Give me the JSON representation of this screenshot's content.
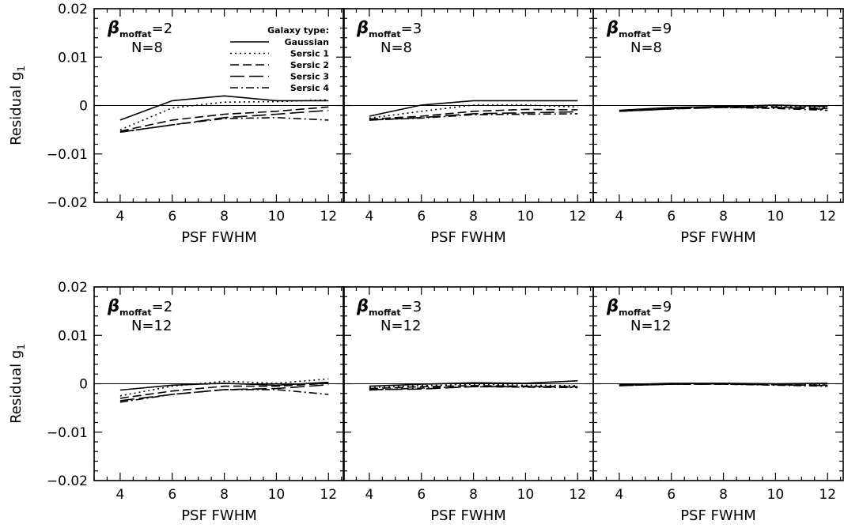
{
  "colors": {
    "ink": "#000000",
    "background": "#ffffff"
  },
  "legend": {
    "title": "Galaxy type:",
    "entries": [
      {
        "label": "Gaussian",
        "dash": "solid"
      },
      {
        "label": "Sersic 1",
        "dash": "dotted"
      },
      {
        "label": "Sersic 2",
        "dash": "short-dash"
      },
      {
        "label": "Sersic 3",
        "dash": "long-dash"
      },
      {
        "label": "Sersic 4",
        "dash": "dash-dot"
      }
    ]
  },
  "chart_data": [
    {
      "type": "line",
      "row": 0,
      "col": 0,
      "label_beta": "=2",
      "label_n": "N=8",
      "xlabel": "PSF FWHM",
      "ylabel": "Residual g",
      "xlim": [
        3,
        12.6
      ],
      "ylim": [
        -0.02,
        0.02
      ],
      "xticks": [
        4,
        6,
        8,
        10,
        12
      ],
      "yticks": [
        -0.02,
        -0.01,
        0,
        0.01,
        0.02
      ],
      "x": [
        4,
        6,
        8,
        10,
        12
      ],
      "series": [
        {
          "name": "Gaussian",
          "values": [
            -0.003,
            0.001,
            0.002,
            0.001,
            0.001
          ]
        },
        {
          "name": "Sersic 1",
          "values": [
            -0.005,
            -0.0005,
            0.0007,
            0.0008,
            0.0012
          ]
        },
        {
          "name": "Sersic 2",
          "values": [
            -0.0053,
            -0.003,
            -0.0018,
            -0.0012,
            -0.0003
          ]
        },
        {
          "name": "Sersic 3",
          "values": [
            -0.0055,
            -0.004,
            -0.0025,
            -0.0018,
            -0.001
          ]
        },
        {
          "name": "Sersic 4",
          "values": [
            -0.0055,
            -0.004,
            -0.0027,
            -0.0025,
            -0.003
          ]
        }
      ]
    },
    {
      "type": "line",
      "row": 0,
      "col": 1,
      "label_beta": "=3",
      "label_n": "N=8",
      "xlabel": "PSF FWHM",
      "ylabel": "",
      "xlim": [
        3,
        12.6
      ],
      "ylim": [
        -0.02,
        0.02
      ],
      "xticks": [
        4,
        6,
        8,
        10,
        12
      ],
      "yticks": [
        -0.02,
        -0.01,
        0,
        0.01,
        0.02
      ],
      "x": [
        4,
        6,
        8,
        10,
        12
      ],
      "series": [
        {
          "name": "Gaussian",
          "values": [
            -0.0022,
            0.0001,
            0.001,
            0.001,
            0.001
          ]
        },
        {
          "name": "Sersic 1",
          "values": [
            -0.0026,
            -0.0012,
            0.0001,
            0.0001,
            -0.0003
          ]
        },
        {
          "name": "Sersic 2",
          "values": [
            -0.0028,
            -0.0022,
            -0.0012,
            -0.0008,
            -0.0009
          ]
        },
        {
          "name": "Sersic 3",
          "values": [
            -0.003,
            -0.0025,
            -0.0017,
            -0.0015,
            -0.0013
          ]
        },
        {
          "name": "Sersic 4",
          "values": [
            -0.003,
            -0.0026,
            -0.0019,
            -0.0018,
            -0.0017
          ]
        }
      ]
    },
    {
      "type": "line",
      "row": 0,
      "col": 2,
      "label_beta": "=9",
      "label_n": "N=8",
      "xlabel": "PSF FWHM",
      "ylabel": "",
      "xlim": [
        3,
        12.6
      ],
      "ylim": [
        -0.02,
        0.02
      ],
      "xticks": [
        4,
        6,
        8,
        10,
        12
      ],
      "yticks": [
        -0.02,
        -0.01,
        0,
        0.01,
        0.02
      ],
      "x": [
        4,
        6,
        8,
        10,
        12
      ],
      "series": [
        {
          "name": "Gaussian",
          "values": [
            -0.001,
            -0.0004,
            -0.0002,
            0.0001,
            -0.0002
          ]
        },
        {
          "name": "Sersic 1",
          "values": [
            -0.0011,
            -0.0005,
            -0.0003,
            -0.0001,
            -0.0004
          ]
        },
        {
          "name": "Sersic 2",
          "values": [
            -0.0012,
            -0.0006,
            -0.0003,
            -0.0003,
            -0.0006
          ]
        },
        {
          "name": "Sersic 3",
          "values": [
            -0.0012,
            -0.0007,
            -0.0004,
            -0.0004,
            -0.0008
          ]
        },
        {
          "name": "Sersic 4",
          "values": [
            -0.0012,
            -0.0007,
            -0.0004,
            -0.0006,
            -0.001
          ]
        }
      ]
    },
    {
      "type": "line",
      "row": 1,
      "col": 0,
      "label_beta": "=2",
      "label_n": "N=12",
      "xlabel": "PSF FWHM",
      "ylabel": "Residual g",
      "xlim": [
        3,
        12.6
      ],
      "ylim": [
        -0.02,
        0.02
      ],
      "xticks": [
        4,
        6,
        8,
        10,
        12
      ],
      "yticks": [
        -0.02,
        -0.01,
        0,
        0.01,
        0.02
      ],
      "x": [
        4,
        6,
        8,
        10,
        12
      ],
      "series": [
        {
          "name": "Gaussian",
          "values": [
            -0.0013,
            -0.0003,
            0.0001,
            -0.0003,
            0.0003
          ]
        },
        {
          "name": "Sersic 1",
          "values": [
            -0.0025,
            -0.0005,
            0.0005,
            0.0001,
            0.001
          ]
        },
        {
          "name": "Sersic 2",
          "values": [
            -0.003,
            -0.0015,
            -0.0005,
            -0.0005,
            0.0001
          ]
        },
        {
          "name": "Sersic 3",
          "values": [
            -0.0035,
            -0.0022,
            -0.0012,
            -0.001,
            -0.0002
          ]
        },
        {
          "name": "Sersic 4",
          "values": [
            -0.0038,
            -0.0022,
            -0.0012,
            -0.0012,
            -0.0022
          ]
        }
      ]
    },
    {
      "type": "line",
      "row": 1,
      "col": 1,
      "label_beta": "=3",
      "label_n": "N=12",
      "xlabel": "PSF FWHM",
      "ylabel": "",
      "xlim": [
        3,
        12.6
      ],
      "ylim": [
        -0.02,
        0.02
      ],
      "xticks": [
        4,
        6,
        8,
        10,
        12
      ],
      "yticks": [
        -0.02,
        -0.01,
        0,
        0.01,
        0.02
      ],
      "x": [
        4,
        6,
        8,
        10,
        12
      ],
      "series": [
        {
          "name": "Gaussian",
          "values": [
            -0.0005,
            -0.0001,
            0.0002,
            0.0001,
            0.0006
          ]
        },
        {
          "name": "Sersic 1",
          "values": [
            -0.0008,
            -0.0004,
            -0.0001,
            -0.0003,
            -0.0004
          ]
        },
        {
          "name": "Sersic 2",
          "values": [
            -0.001,
            -0.0006,
            -0.0004,
            -0.0005,
            -0.0006
          ]
        },
        {
          "name": "Sersic 3",
          "values": [
            -0.0012,
            -0.0011,
            -0.0006,
            -0.0006,
            -0.0007
          ]
        },
        {
          "name": "Sersic 4",
          "values": [
            -0.0013,
            -0.0009,
            -0.0006,
            -0.0007,
            -0.0008
          ]
        }
      ]
    },
    {
      "type": "line",
      "row": 1,
      "col": 2,
      "label_beta": "=9",
      "label_n": "N=12",
      "xlabel": "PSF FWHM",
      "ylabel": "",
      "xlim": [
        3,
        12.6
      ],
      "ylim": [
        -0.02,
        0.02
      ],
      "xticks": [
        4,
        6,
        8,
        10,
        12
      ],
      "yticks": [
        -0.02,
        -0.01,
        0,
        0.01,
        0.02
      ],
      "x": [
        4,
        6,
        8,
        10,
        12
      ],
      "series": [
        {
          "name": "Gaussian",
          "values": [
            -0.0002,
            0.0001,
            0.0001,
            0.0,
            0.0001
          ]
        },
        {
          "name": "Sersic 1",
          "values": [
            -0.0003,
            0.0,
            0.0001,
            -0.0001,
            -0.0002
          ]
        },
        {
          "name": "Sersic 2",
          "values": [
            -0.0003,
            -0.0001,
            0.0,
            -0.0002,
            -0.0003
          ]
        },
        {
          "name": "Sersic 3",
          "values": [
            -0.0004,
            -0.0001,
            -0.0001,
            -0.0002,
            -0.0004
          ]
        },
        {
          "name": "Sersic 4",
          "values": [
            -0.0004,
            -0.0001,
            -0.0001,
            -0.0003,
            -0.0005
          ]
        }
      ]
    }
  ]
}
